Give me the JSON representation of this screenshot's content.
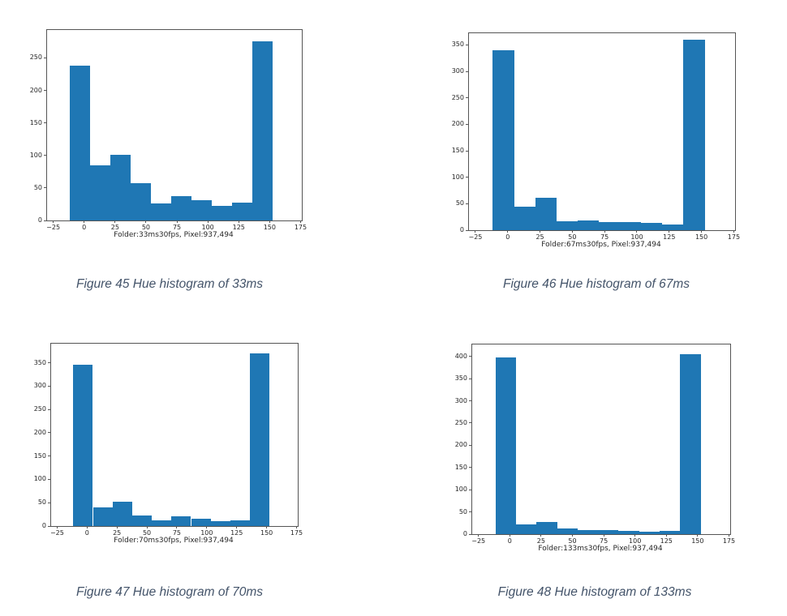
{
  "page": {
    "background": "#ffffff"
  },
  "chart_data": [
    {
      "type": "bar",
      "subtype": "histogram",
      "title": "",
      "ylabel": "",
      "xlabel": "Folder:33ms30fps, Pixel:937,494",
      "caption": "Figure 45 Hue histogram of 33ms",
      "bar_color": "#1f77b4",
      "bin_edges": [
        -11.5,
        4.9,
        21.3,
        37.7,
        54.1,
        70.5,
        86.9,
        103.3,
        119.7,
        136.1,
        152.5
      ],
      "values": [
        238,
        85,
        101,
        57,
        26,
        37,
        31,
        22,
        27,
        275
      ],
      "xlim": [
        -30,
        176
      ],
      "ylim": [
        0,
        293
      ],
      "x_tick_values": [
        -25,
        0,
        25,
        50,
        75,
        100,
        125,
        150,
        175
      ],
      "x_tick_labels": [
        "−25",
        "0",
        "25",
        "50",
        "75",
        "100",
        "125",
        "150",
        "175"
      ],
      "y_ticks": [
        0,
        50,
        100,
        150,
        200,
        250
      ],
      "grid": false,
      "legend": null
    },
    {
      "type": "bar",
      "subtype": "histogram",
      "title": "",
      "ylabel": "",
      "xlabel": "Folder:67ms30fps, Pixel:937,494",
      "caption": "Figure 46 Hue histogram of 67ms",
      "bar_color": "#1f77b4",
      "bin_edges": [
        -11.5,
        4.9,
        21.3,
        37.7,
        54.1,
        70.5,
        86.9,
        103.3,
        119.7,
        136.1,
        152.5
      ],
      "values": [
        340,
        45,
        61,
        17,
        18,
        16,
        15,
        14,
        11,
        359
      ],
      "xlim": [
        -30,
        176
      ],
      "ylim": [
        0,
        372
      ],
      "x_tick_values": [
        -25,
        0,
        25,
        50,
        75,
        100,
        125,
        150,
        175
      ],
      "x_tick_labels": [
        "−25",
        "0",
        "25",
        "50",
        "75",
        "100",
        "125",
        "150",
        "175"
      ],
      "y_ticks": [
        0,
        50,
        100,
        150,
        200,
        250,
        300,
        350
      ],
      "grid": false,
      "legend": null
    },
    {
      "type": "bar",
      "subtype": "histogram",
      "title": "",
      "ylabel": "",
      "xlabel": "Folder:70ms30fps, Pixel:937,494",
      "caption": "Figure 47 Hue histogram of 70ms",
      "bar_color": "#1f77b4",
      "bin_edges": [
        -11.5,
        4.9,
        21.3,
        37.7,
        54.1,
        70.5,
        86.9,
        103.3,
        119.7,
        136.1,
        152.5
      ],
      "values": [
        346,
        40,
        52,
        23,
        12,
        20,
        15,
        10,
        12,
        370
      ],
      "xlim": [
        -30,
        176
      ],
      "ylim": [
        0,
        391
      ],
      "x_tick_values": [
        -25,
        0,
        25,
        50,
        75,
        100,
        125,
        150,
        175
      ],
      "x_tick_labels": [
        "−25",
        "0",
        "25",
        "50",
        "75",
        "100",
        "125",
        "150",
        "175"
      ],
      "y_ticks": [
        0,
        50,
        100,
        150,
        200,
        250,
        300,
        350
      ],
      "grid": false,
      "legend": null
    },
    {
      "type": "bar",
      "subtype": "histogram",
      "title": "",
      "ylabel": "",
      "xlabel": "Folder:133ms30fps, Pixel:937,494",
      "caption": "Figure 48 Hue histogram of 133ms",
      "bar_color": "#1f77b4",
      "bin_edges": [
        -11.5,
        4.9,
        21.3,
        37.7,
        54.1,
        70.5,
        86.9,
        103.3,
        119.7,
        136.1,
        152.5
      ],
      "values": [
        397,
        22,
        27,
        12,
        10,
        9,
        8,
        5,
        7,
        405
      ],
      "xlim": [
        -30,
        176
      ],
      "ylim": [
        0,
        427
      ],
      "x_tick_values": [
        -25,
        0,
        25,
        50,
        75,
        100,
        125,
        150,
        175
      ],
      "x_tick_labels": [
        "−25",
        "0",
        "25",
        "50",
        "75",
        "100",
        "125",
        "150",
        "175"
      ],
      "y_ticks": [
        0,
        50,
        100,
        150,
        200,
        250,
        300,
        350,
        400
      ],
      "grid": false,
      "legend": null
    }
  ]
}
